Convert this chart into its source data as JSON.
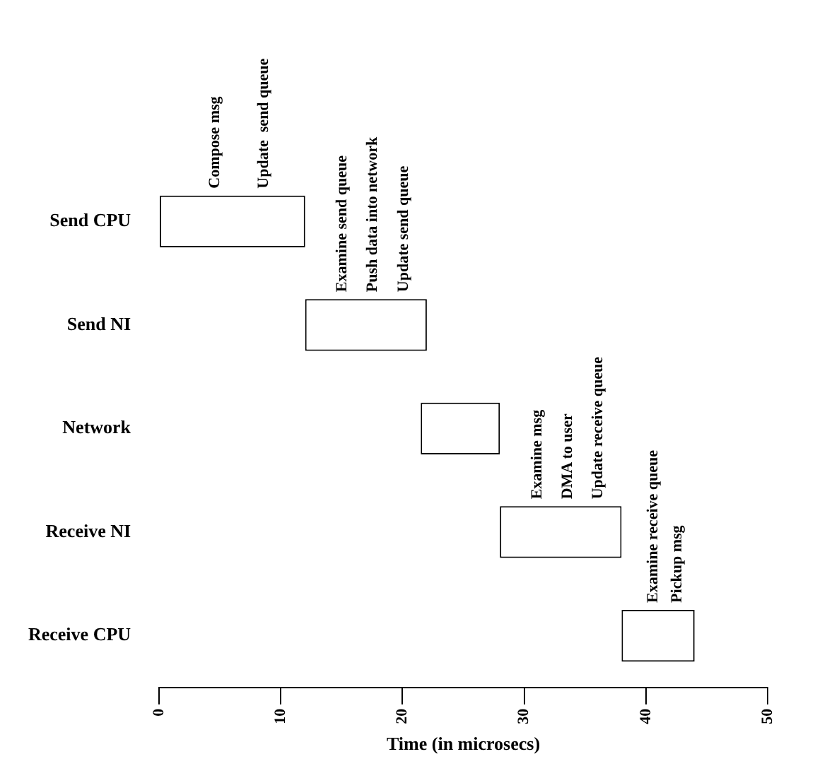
{
  "chart_data": {
    "type": "bar",
    "orientation": "horizontal",
    "xlabel": "Time (in microsecs)",
    "categories": [
      "Send CPU",
      "Send NI",
      "Network",
      "Receive NI",
      "Receive CPU"
    ],
    "base": [
      0,
      12,
      21.5,
      28,
      38
    ],
    "values": [
      12,
      10,
      6.5,
      10,
      6
    ],
    "color": "#ffffff",
    "xlim": [
      0,
      50
    ],
    "xticks": [
      0,
      10,
      20,
      30,
      40,
      50
    ],
    "annotations": [
      "Compose msg",
      "Update  send queue",
      "Examine send queue",
      "Push data into network",
      "Update send queue",
      "Examine msg",
      "DMA to user",
      "Update receive queue",
      "Examine receive queue",
      "Pickup msg"
    ]
  }
}
